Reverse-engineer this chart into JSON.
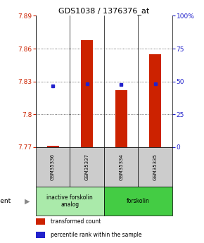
{
  "title": "GDS1038 / 1376376_at",
  "samples": [
    "GSM35336",
    "GSM35337",
    "GSM35334",
    "GSM35335"
  ],
  "bar_values": [
    7.771,
    7.868,
    7.822,
    7.855
  ],
  "bar_base": 7.77,
  "percentile_values": [
    7.826,
    7.828,
    7.827,
    7.828
  ],
  "ylim": [
    7.77,
    7.89
  ],
  "yticks": [
    7.77,
    7.8,
    7.83,
    7.86,
    7.89
  ],
  "ytick_labels": [
    "7.77",
    "7.8",
    "7.83",
    "7.86",
    "7.89"
  ],
  "y2lim": [
    0,
    100
  ],
  "y2ticks": [
    0,
    25,
    50,
    75,
    100
  ],
  "y2tick_labels": [
    "0",
    "25",
    "50",
    "75",
    "100%"
  ],
  "bar_color": "#cc2200",
  "dot_color": "#2222cc",
  "bar_width": 0.35,
  "agent_groups": [
    {
      "label": "inactive forskolin\nanalog",
      "span": [
        0,
        2
      ],
      "color": "#aaeaaa"
    },
    {
      "label": "forskolin",
      "span": [
        2,
        4
      ],
      "color": "#44cc44"
    }
  ],
  "agent_label": "agent",
  "legend_items": [
    {
      "color": "#cc2200",
      "label": "transformed count"
    },
    {
      "color": "#2222cc",
      "label": "percentile rank within the sample"
    }
  ],
  "sample_box_color": "#cccccc",
  "left_tick_color": "#cc2200",
  "right_tick_color": "#2222cc",
  "grid_yticks": [
    7.8,
    7.83,
    7.86
  ]
}
